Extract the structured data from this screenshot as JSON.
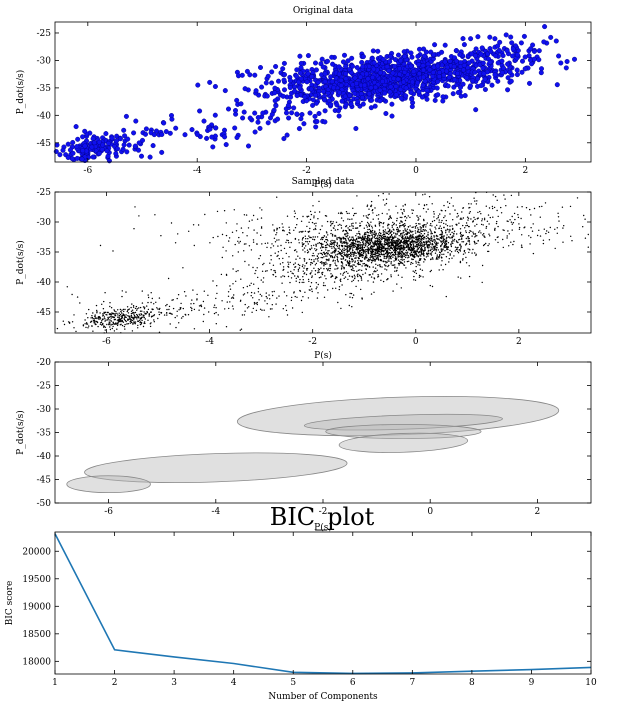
{
  "chart_data": [
    {
      "id": "original",
      "type": "scatter",
      "title": "Original data",
      "xlabel": "P(s)",
      "ylabel": "P_dot(s/s)",
      "xlim": [
        -6.6,
        3.2
      ],
      "ylim": [
        -48.5,
        -23
      ],
      "xticks": [
        -6,
        -4,
        -2,
        0,
        2
      ],
      "yticks": [
        -25,
        -30,
        -35,
        -40,
        -45
      ],
      "marker_color": "#1010ee",
      "marker_edge": "#000080",
      "clusters": [
        {
          "n": 900,
          "cx": -0.6,
          "cy": -33.5,
          "sx": 0.9,
          "sy": 2.3,
          "rho": 0.35
        },
        {
          "n": 260,
          "cx": 0.9,
          "cy": -31.5,
          "sx": 0.8,
          "sy": 2.0,
          "rho": 0.3
        },
        {
          "n": 150,
          "cx": -5.9,
          "cy": -45.8,
          "sx": 0.45,
          "sy": 1.2,
          "rho": 0.4
        },
        {
          "n": 120,
          "cx": -3.4,
          "cy": -41.5,
          "sx": 1.3,
          "sy": 2.6,
          "rho": 0.6
        },
        {
          "n": 90,
          "cx": -1.9,
          "cy": -33.0,
          "sx": 0.8,
          "sy": 2.2,
          "rho": 0.2
        },
        {
          "n": 40,
          "cx": 1.6,
          "cy": -28.0,
          "sx": 0.6,
          "sy": 1.8,
          "rho": 0.2
        }
      ]
    },
    {
      "id": "sampled",
      "type": "scatter",
      "title": "Sampled data",
      "xlabel": "P(s)",
      "ylabel": "P_dot(s/s)",
      "xlim": [
        -7.0,
        3.4
      ],
      "ylim": [
        -48.5,
        -25
      ],
      "xticks": [
        -6,
        -4,
        -2,
        0,
        2
      ],
      "yticks": [
        -25,
        -30,
        -35,
        -40,
        -45
      ],
      "marker_color": "#000000",
      "clusters": [
        {
          "n": 1700,
          "cx": -0.5,
          "cy": -34.0,
          "sx": 0.75,
          "sy": 1.4,
          "rho": 0.2
        },
        {
          "n": 700,
          "cx": -0.5,
          "cy": -31.5,
          "sx": 1.7,
          "sy": 2.1,
          "rho": 0.1
        },
        {
          "n": 400,
          "cx": -1.2,
          "cy": -37.5,
          "sx": 1.0,
          "sy": 2.0,
          "rho": 0.1
        },
        {
          "n": 380,
          "cx": -5.7,
          "cy": -46.0,
          "sx": 0.45,
          "sy": 0.9,
          "rho": 0.3
        },
        {
          "n": 260,
          "cx": -3.6,
          "cy": -43.0,
          "sx": 1.6,
          "sy": 2.5,
          "rho": 0.6
        },
        {
          "n": 90,
          "cx": 0.6,
          "cy": -27.5,
          "sx": 1.5,
          "sy": 1.5,
          "rho": 0.0
        }
      ]
    },
    {
      "id": "gmm",
      "type": "ellipses",
      "xlabel": "P(s)",
      "ylabel": "P_dot(s/s)",
      "xlim": [
        -7.0,
        3.0
      ],
      "ylim": [
        -50,
        -20
      ],
      "xticks": [
        -6,
        -4,
        -2,
        0,
        2
      ],
      "yticks": [
        -20,
        -25,
        -30,
        -35,
        -40,
        -45,
        -50
      ],
      "fill": "#bbbbbb",
      "fill_opacity": 0.45,
      "stroke": "#888888",
      "ellipses": [
        {
          "cx": -0.6,
          "cy": -31.5,
          "rx": 3.0,
          "ry": 4.0,
          "angle": -2
        },
        {
          "cx": -0.5,
          "cy": -32.8,
          "rx": 1.85,
          "ry": 1.5,
          "angle": -2
        },
        {
          "cx": -0.5,
          "cy": -34.8,
          "rx": 1.45,
          "ry": 1.5,
          "angle": 0
        },
        {
          "cx": -0.5,
          "cy": -37.2,
          "rx": 1.2,
          "ry": 2.0,
          "angle": -2
        },
        {
          "cx": -4.0,
          "cy": -42.5,
          "rx": 2.45,
          "ry": 3.0,
          "angle": -2
        },
        {
          "cx": -6.0,
          "cy": -46.0,
          "rx": 0.78,
          "ry": 1.8,
          "angle": 0
        }
      ]
    },
    {
      "id": "bic",
      "type": "line",
      "title": "BIC_plot",
      "xlabel": "Number of Components",
      "ylabel": "BIC score",
      "xlim": [
        1,
        10
      ],
      "ylim": [
        17770,
        20350
      ],
      "xticks": [
        1,
        2,
        3,
        4,
        5,
        6,
        7,
        8,
        9,
        10
      ],
      "yticks": [
        18000,
        18500,
        19000,
        19500,
        20000
      ],
      "line_color": "#1f77b4",
      "x": [
        1,
        2,
        3,
        4,
        5,
        6,
        7,
        8,
        9,
        10
      ],
      "y": [
        20320,
        18210,
        18080,
        17960,
        17800,
        17780,
        17790,
        17820,
        17850,
        17890
      ]
    }
  ]
}
